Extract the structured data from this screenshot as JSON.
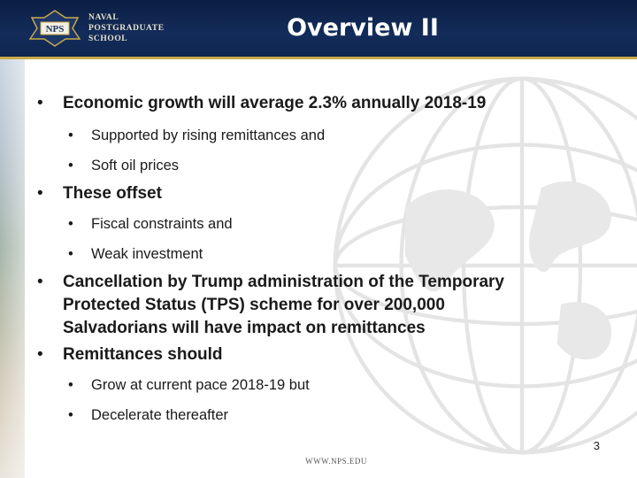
{
  "header": {
    "title": "Overview II",
    "logo_emblem_text": "NPS",
    "logo_lines": [
      "NAVAL",
      "POSTGRADUATE",
      "SCHOOL"
    ]
  },
  "bullets": [
    {
      "level": 1,
      "text": "Economic growth will average 2.3% annually 2018-19"
    },
    {
      "level": 2,
      "text": "Supported by rising remittances and"
    },
    {
      "level": 2,
      "text": "Soft oil prices"
    },
    {
      "level": 1,
      "text": "These offset"
    },
    {
      "level": 2,
      "text": "Fiscal constraints and"
    },
    {
      "level": 2,
      "text": "Weak investment"
    },
    {
      "level": 1,
      "lines": [
        "Cancellation by Trump administration of the Temporary",
        "Protected Status (TPS) scheme for over 200,000",
        "Salvadorians will have impact on remittances"
      ]
    },
    {
      "level": 1,
      "text": "Remittances should"
    },
    {
      "level": 2,
      "text": "Grow at current pace 2018-19 but"
    },
    {
      "level": 2,
      "text": "Decelerate thereafter"
    }
  ],
  "bullet_glyph": "•",
  "footer": {
    "url": "WWW.NPS.EDU",
    "page_number": "3"
  },
  "colors": {
    "header_bg": "#0f2550",
    "accent_gold": "#c9a94a",
    "text": "#1a1a1a"
  }
}
